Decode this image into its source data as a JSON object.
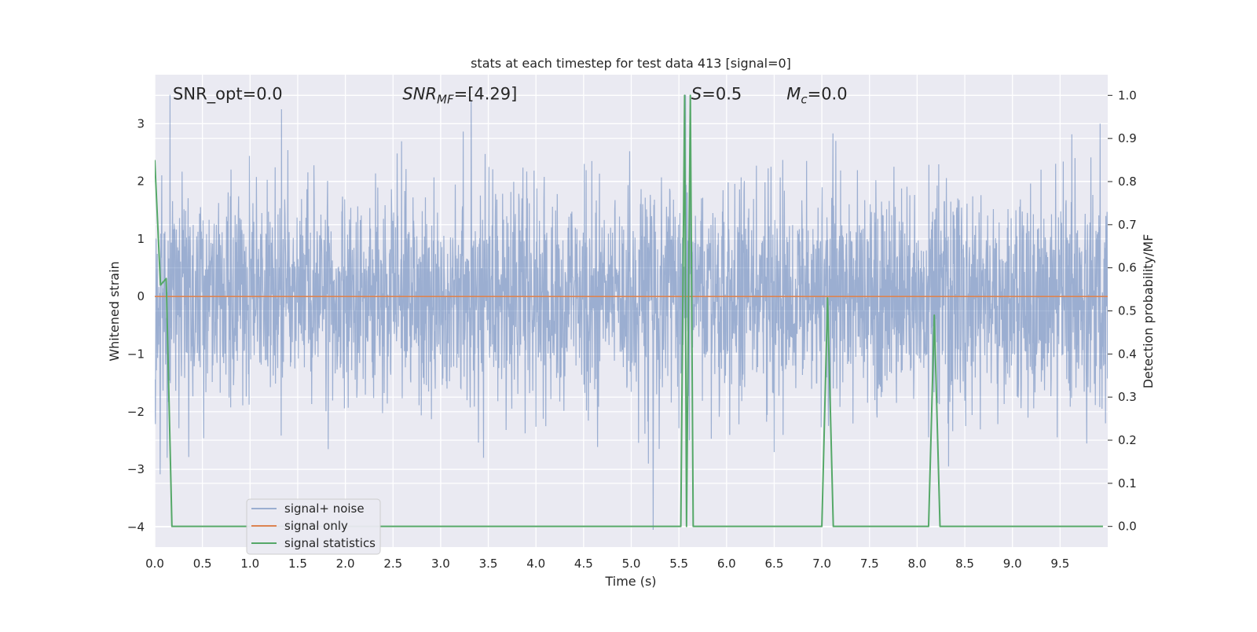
{
  "chart_data": {
    "type": "line",
    "title": "stats at each timestep for test data 413 [signal=0]",
    "xlabel": "Time (s)",
    "ylabel": "Whitened strain",
    "y2label": "Detection probability/MF",
    "xlim": [
      0.0,
      10.0
    ],
    "ylim": [
      -4.35,
      3.85
    ],
    "y2lim": [
      -0.048,
      1.048
    ],
    "xticks": [
      0.0,
      0.5,
      1.0,
      1.5,
      2.0,
      2.5,
      3.0,
      3.5,
      4.0,
      4.5,
      5.0,
      5.5,
      6.0,
      6.5,
      7.0,
      7.5,
      8.0,
      8.5,
      9.0,
      9.5
    ],
    "xtick_labels": [
      "0.0",
      "0.5",
      "1.0",
      "1.5",
      "2.0",
      "2.5",
      "3.0",
      "3.5",
      "4.0",
      "4.5",
      "5.0",
      "5.5",
      "6.0",
      "6.5",
      "7.0",
      "7.5",
      "8.0",
      "8.5",
      "9.0",
      "9.5"
    ],
    "yticks": [
      3,
      2,
      1,
      0,
      -1,
      -2,
      -3,
      -4
    ],
    "ytick_labels": [
      "3",
      "2",
      "1",
      "0",
      "−1",
      "−2",
      "−3",
      "−4"
    ],
    "y2ticks": [
      1.0,
      0.9,
      0.8,
      0.7,
      0.6,
      0.5,
      0.4,
      0.3,
      0.2,
      0.1,
      0.0
    ],
    "y2tick_labels": [
      "1.0",
      "0.9",
      "0.8",
      "0.7",
      "0.6",
      "0.5",
      "0.4",
      "0.3",
      "0.2",
      "0.1",
      "0.0"
    ],
    "grid": true,
    "legend_position": "lower-left",
    "annotations": [
      {
        "id": "snr_opt",
        "prefix": "SNR_opt",
        "sub": "",
        "value": "=0.0",
        "italic": false,
        "x": 0.19,
        "y": 3.5
      },
      {
        "id": "snr_mf",
        "prefix": "SNR",
        "sub": "MF",
        "value": "=[4.29]",
        "italic": true,
        "x": 2.6,
        "y": 3.5
      },
      {
        "id": "s_stat",
        "prefix": "S",
        "sub": "",
        "value": "=0.5",
        "italic": true,
        "x": 5.63,
        "y": 3.5
      },
      {
        "id": "mc",
        "prefix": "M",
        "sub": "c",
        "value": "=0.0",
        "italic": true,
        "x": 6.63,
        "y": 3.5
      }
    ],
    "series": [
      {
        "name": "signal+ noise",
        "color": "#4c72b0",
        "axis": "left",
        "kind": "noise",
        "x_range": [
          0.0,
          10.0
        ],
        "typical_amplitude": 1.2,
        "spikes": [
          {
            "x": 0.16,
            "y": 3.5
          },
          {
            "x": 0.13,
            "y": -2.8
          },
          {
            "x": 1.33,
            "y": 3.25
          },
          {
            "x": 1.82,
            "y": -2.65
          },
          {
            "x": 3.45,
            "y": -2.8
          },
          {
            "x": 5.23,
            "y": -4.05
          },
          {
            "x": 5.18,
            "y": -2.9
          },
          {
            "x": 5.57,
            "y": 3.5
          },
          {
            "x": 6.5,
            "y": -2.7
          },
          {
            "x": 8.33,
            "y": -2.95
          },
          {
            "x": 9.92,
            "y": 3.0
          },
          {
            "x": 9.78,
            "y": -2.55
          }
        ]
      },
      {
        "name": "signal only",
        "color": "#dd8452",
        "axis": "left",
        "x": [
          0.0,
          10.0
        ],
        "y": [
          0.0,
          0.0
        ]
      },
      {
        "name": "signal statistics",
        "color": "#55a868",
        "axis": "right",
        "x": [
          0.0,
          0.06,
          0.12,
          0.18,
          5.52,
          5.56,
          5.58,
          5.62,
          5.65,
          5.68,
          7.0,
          7.06,
          7.12,
          8.12,
          8.18,
          8.24,
          9.95
        ],
        "y": [
          0.85,
          0.56,
          0.575,
          0.0,
          0.0,
          1.0,
          0.0,
          1.0,
          0.0,
          0.0,
          0.0,
          0.53,
          0.0,
          0.0,
          0.49,
          0.0,
          0.0
        ]
      }
    ]
  }
}
